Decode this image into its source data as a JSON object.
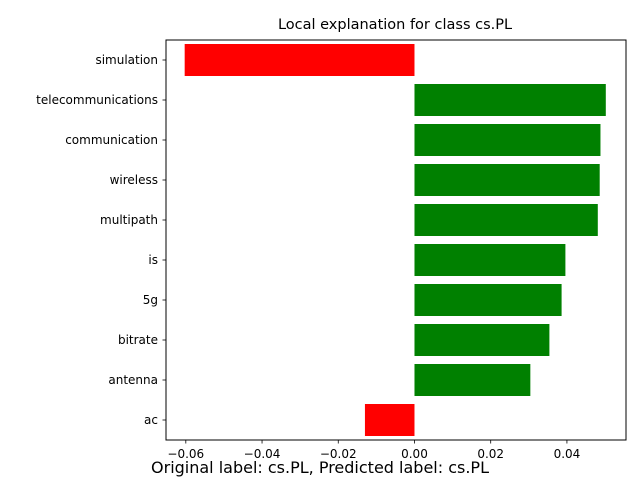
{
  "chart_data": {
    "type": "bar",
    "orientation": "horizontal",
    "title": "Local explanation for class cs.PL",
    "categories": [
      "simulation",
      "telecommunications",
      "communication",
      "wireless",
      "multipath",
      "is",
      "5g",
      "bitrate",
      "antenna",
      "ac"
    ],
    "values": [
      -0.0603,
      0.0502,
      0.0488,
      0.0486,
      0.0481,
      0.0396,
      0.0386,
      0.0354,
      0.0304,
      -0.013
    ],
    "xlim": [
      -0.0652,
      0.0555
    ],
    "xticks": [
      -0.06,
      -0.04,
      -0.02,
      0.0,
      0.02,
      0.04
    ],
    "xtick_labels": [
      "−0.06",
      "−0.04",
      "−0.02",
      "0.00",
      "0.02",
      "0.04"
    ],
    "xlabel": "",
    "ylabel": "",
    "grid": false,
    "colors": {
      "positive": "#008000",
      "negative": "#ff0000"
    }
  },
  "caption": "Original label: cs.PL, Predicted label: cs.PL"
}
